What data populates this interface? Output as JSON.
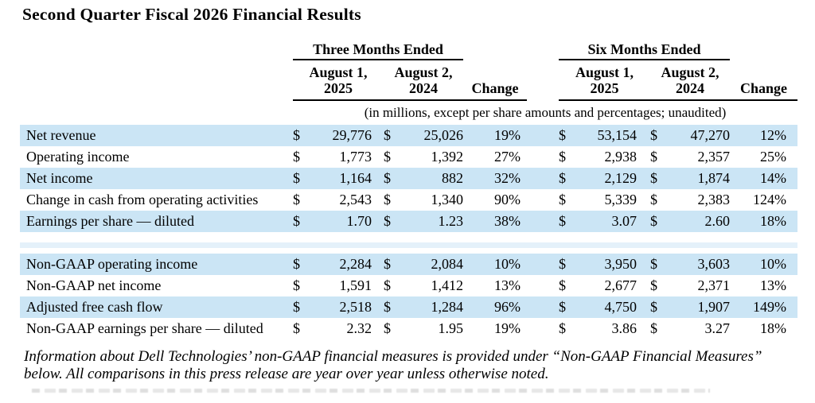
{
  "page": {
    "title": "Second Quarter Fiscal 2026 Financial Results"
  },
  "table": {
    "currency_symbol": "$",
    "group_headers": {
      "three_months": "Three Months Ended",
      "six_months": "Six Months Ended"
    },
    "column_headers": {
      "tm_2025": "August 1,\n2025",
      "tm_2024": "August 2,\n2024",
      "tm_change": "Change",
      "sm_2025": "August 1,\n2025",
      "sm_2024": "August 2,\n2024",
      "sm_change": "Change"
    },
    "units_note": "(in millions, except per share amounts and percentages; unaudited)",
    "rows": [
      {
        "label": "Net revenue",
        "tm_2025": "29,776",
        "tm_2024": "25,026",
        "tm_change": "19%",
        "sm_2025": "53,154",
        "sm_2024": "47,270",
        "sm_change": "12%",
        "shaded": true
      },
      {
        "label": "Operating income",
        "tm_2025": "1,773",
        "tm_2024": "1,392",
        "tm_change": "27%",
        "sm_2025": "2,938",
        "sm_2024": "2,357",
        "sm_change": "25%",
        "shaded": false
      },
      {
        "label": "Net income",
        "tm_2025": "1,164",
        "tm_2024": "882",
        "tm_change": "32%",
        "sm_2025": "2,129",
        "sm_2024": "1,874",
        "sm_change": "14%",
        "shaded": true
      },
      {
        "label": "Change in cash from operating activities",
        "tm_2025": "2,543",
        "tm_2024": "1,340",
        "tm_change": "90%",
        "sm_2025": "5,339",
        "sm_2024": "2,383",
        "sm_change": "124%",
        "shaded": false
      },
      {
        "label": "Earnings per share — diluted",
        "tm_2025": "1.70",
        "tm_2024": "1.23",
        "tm_change": "38%",
        "sm_2025": "3.07",
        "sm_2024": "2.60",
        "sm_change": "18%",
        "shaded": true
      },
      {
        "spacer": true
      },
      {
        "label": "Non-GAAP operating income",
        "tm_2025": "2,284",
        "tm_2024": "2,084",
        "tm_change": "10%",
        "sm_2025": "3,950",
        "sm_2024": "3,603",
        "sm_change": "10%",
        "shaded": true
      },
      {
        "label": "Non-GAAP net income",
        "tm_2025": "1,591",
        "tm_2024": "1,412",
        "tm_change": "13%",
        "sm_2025": "2,677",
        "sm_2024": "2,371",
        "sm_change": "13%",
        "shaded": false
      },
      {
        "label": "Adjusted free cash flow",
        "tm_2025": "2,518",
        "tm_2024": "1,284",
        "tm_change": "96%",
        "sm_2025": "4,750",
        "sm_2024": "1,907",
        "sm_change": "149%",
        "shaded": true
      },
      {
        "label": "Non-GAAP earnings per share — diluted",
        "tm_2025": "2.32",
        "tm_2024": "1.95",
        "tm_change": "19%",
        "sm_2025": "3.86",
        "sm_2024": "3.27",
        "sm_change": "18%",
        "shaded": false
      }
    ]
  },
  "footnote": "Information about Dell Technologies’ non-GAAP financial measures is provided under “Non-GAAP Financial Measures”\nbelow. All comparisons in this press release are year over year unless otherwise noted.",
  "colors": {
    "stripe": "#cbe5f5",
    "spacer_stripe": "#e4f1fa",
    "text": "#000000",
    "background": "#ffffff"
  }
}
